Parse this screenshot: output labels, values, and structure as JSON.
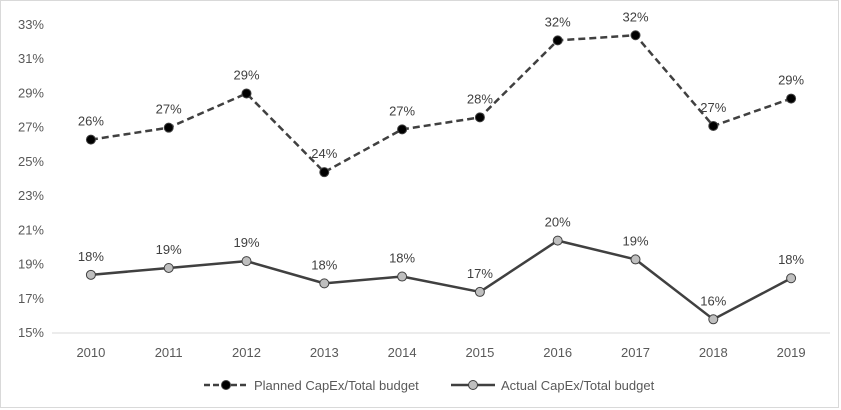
{
  "chart_data": {
    "type": "line",
    "title": "",
    "xlabel": "",
    "ylabel": "",
    "x": [
      "2010",
      "2011",
      "2012",
      "2013",
      "2014",
      "2015",
      "2016",
      "2017",
      "2018",
      "2019"
    ],
    "yticks": [
      "15%",
      "17%",
      "19%",
      "21%",
      "23%",
      "25%",
      "27%",
      "29%",
      "31%",
      "33%"
    ],
    "ylim": [
      15,
      33
    ],
    "grid": false,
    "legend_position": "bottom",
    "series": [
      {
        "name": "Planned CapEx/Total budget",
        "style": "dashed",
        "marker_color": "#000000",
        "line_color": "#404040",
        "values": [
          26.3,
          27.0,
          29.0,
          24.4,
          26.9,
          27.6,
          32.1,
          32.4,
          27.1,
          28.7
        ],
        "labels": [
          "26%",
          "27%",
          "29%",
          "24%",
          "27%",
          "28%",
          "32%",
          "32%",
          "27%",
          "29%"
        ]
      },
      {
        "name": "Actual CapEx/Total budget",
        "style": "solid",
        "marker_color": "#bfbfbf",
        "line_color": "#404040",
        "values": [
          18.4,
          18.8,
          19.2,
          17.9,
          18.3,
          17.4,
          20.4,
          19.3,
          15.8,
          18.2
        ],
        "labels": [
          "18%",
          "19%",
          "19%",
          "18%",
          "18%",
          "17%",
          "20%",
          "19%",
          "16%",
          "18%"
        ]
      }
    ]
  }
}
